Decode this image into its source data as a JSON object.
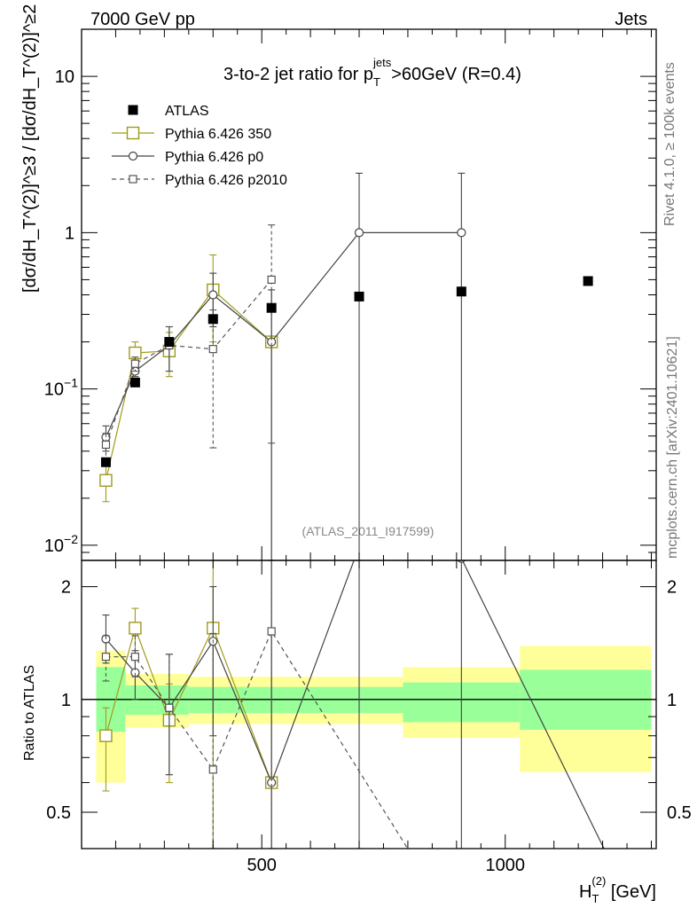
{
  "header": {
    "left": "7000 GeV pp",
    "right": "Jets"
  },
  "side_labels": {
    "rivet": "Rivet 4.1.0, ≥ 100k events",
    "mcplots": "mcplots.cern.ch [arXiv:2401.10621]"
  },
  "chart_data": {
    "type": "scatter",
    "title": "3-to-2 jet ratio for p_T^jets > 60GeV (R=0.4)",
    "title_parts": {
      "main": "3-to-2 jet ratio for p",
      "sub": "T",
      "sup": "jets",
      "tail": ">60GeV (R=0.4)"
    },
    "analysis_id": "(ATLAS_2011_I917599)",
    "xlabel": "H_T^(2) [GeV]",
    "xlabel_parts": {
      "main": "H",
      "sub": "T",
      "sup": "(2)",
      "tail": " [GeV]"
    },
    "ylabel": "[dσ/dH_T^(2)]^≥3 / [dσ/dH_T^(2)]^≥2",
    "ratio_ylabel": "Ratio to ATLAS",
    "xlim": [
      130,
      1310
    ],
    "ylim": [
      0.008,
      20
    ],
    "yscale": "log",
    "ratio_ylim": [
      0.4,
      2.35
    ],
    "ratio_yscale": "log",
    "x_ticks": [
      500,
      1000
    ],
    "x_tick_labels": [
      "500",
      "1000"
    ],
    "y_ticks": [
      0.01,
      0.1,
      1,
      10
    ],
    "y_tick_labels": [
      "10^-2",
      "10^-1",
      "1",
      "10"
    ],
    "ratio_y_ticks": [
      0.5,
      1,
      2
    ],
    "ratio_y_tick_labels": [
      "0.5",
      "1",
      "2"
    ],
    "legend_position": "top-left",
    "bin_edges": [
      160,
      220,
      280,
      350,
      450,
      590,
      790,
      1030,
      1300
    ],
    "series": [
      {
        "name": "ATLAS",
        "style": "data",
        "x": [
          180,
          240,
          310,
          400,
          520,
          700,
          910,
          1170
        ],
        "y": [
          0.034,
          0.11,
          0.2,
          0.28,
          0.33,
          0.39,
          0.42,
          0.49
        ]
      },
      {
        "name": "Pythia 6.426 350",
        "style": "olive-square",
        "x": [
          180,
          240,
          310,
          400,
          520
        ],
        "y": [
          0.026,
          0.17,
          0.175,
          0.43,
          0.2
        ],
        "y_low": [
          0.019,
          0.145,
          0.12,
          0.2,
          0.0001
        ],
        "y_high": [
          0.033,
          0.2,
          0.23,
          0.72,
          0.43
        ],
        "ratio": [
          0.8,
          1.55,
          0.88,
          1.55,
          0.6
        ],
        "ratio_low": [
          0.57,
          1.3,
          0.6,
          0.3,
          0.3
        ],
        "ratio_high": [
          0.95,
          1.75,
          1.1,
          2.6,
          2.6
        ]
      },
      {
        "name": "Pythia 6.426 p0",
        "style": "dark-circle",
        "x": [
          180,
          240,
          310,
          400,
          520,
          700,
          910
        ],
        "y": [
          0.049,
          0.13,
          0.19,
          0.4,
          0.2,
          1.0,
          1.0
        ],
        "y_low": [
          0.04,
          0.12,
          0.13,
          0.25,
          0.0001,
          0.0001,
          0.0001
        ],
        "y_high": [
          0.058,
          0.14,
          0.25,
          0.55,
          0.43,
          2.4,
          2.4
        ],
        "ratio": [
          1.45,
          1.18,
          0.95,
          1.43,
          0.6,
          2.56,
          2.38,
          0.3
        ],
        "ratio_x": [
          180,
          240,
          310,
          400,
          520,
          700,
          910,
          1250
        ],
        "ratio_low": [
          1.25,
          1.0,
          0.63,
          0.8,
          0.3,
          0.3,
          0.3
        ],
        "ratio_high": [
          1.68,
          1.35,
          1.32,
          2.0,
          2.6,
          2.6,
          2.6
        ]
      },
      {
        "name": "Pythia 6.426 p2010",
        "style": "gray-dashed-square",
        "x": [
          180,
          240,
          310,
          400,
          520
        ],
        "y": [
          0.044,
          0.145,
          0.19,
          0.18,
          0.5
        ],
        "y_low": [
          0.036,
          0.13,
          0.13,
          0.042,
          0.045
        ],
        "y_high": [
          0.052,
          0.16,
          0.25,
          0.32,
          1.12
        ],
        "ratio": [
          1.3,
          1.3,
          0.95,
          0.65,
          1.52,
          0.3
        ],
        "ratio_x": [
          180,
          240,
          310,
          400,
          520,
          860
        ],
        "ratio_low": [
          1.12,
          1.15,
          0.63,
          0.38,
          0.3
        ],
        "ratio_high": [
          1.48,
          1.48,
          1.32,
          1.5,
          2.6
        ]
      }
    ],
    "ratio_bands": {
      "yellow_low": [
        0.6,
        0.84,
        0.84,
        0.86,
        0.86,
        0.86,
        0.79,
        0.64
      ],
      "yellow_high": [
        1.35,
        1.17,
        1.17,
        1.15,
        1.15,
        1.15,
        1.22,
        1.39
      ],
      "green_low": [
        0.82,
        0.91,
        0.91,
        0.92,
        0.92,
        0.92,
        0.87,
        0.83
      ],
      "green_high": [
        1.22,
        1.09,
        1.09,
        1.08,
        1.08,
        1.08,
        1.11,
        1.2
      ]
    },
    "colors": {
      "atlas": "#000000",
      "p350": "#a09a1e",
      "p0": "#444444",
      "p2010": "#555555",
      "band_yellow": "#ffff99",
      "band_green": "#99ff99"
    }
  }
}
